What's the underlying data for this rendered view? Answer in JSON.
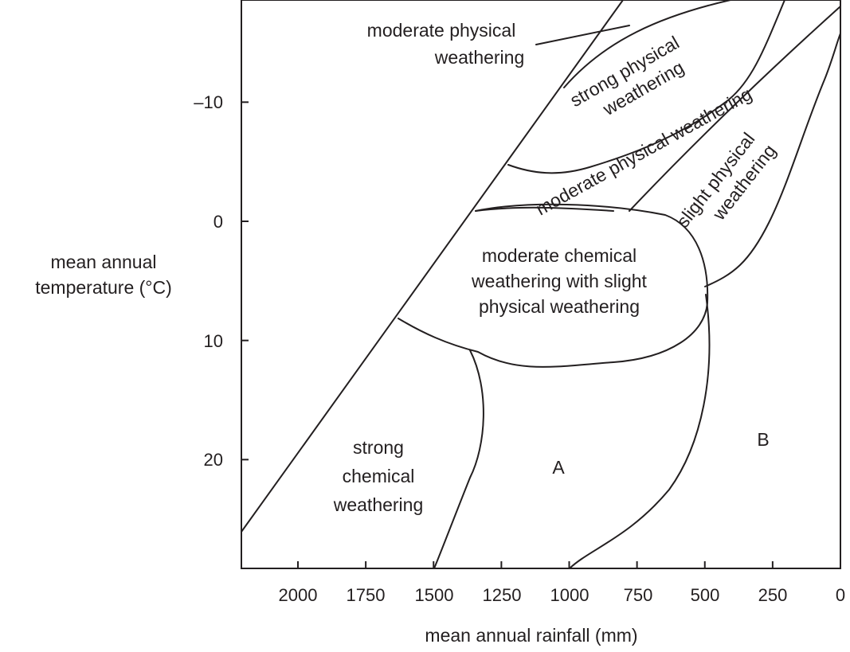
{
  "diagram": {
    "axes": {
      "x_label": "mean annual rainfall (mm)",
      "y_label_lines": [
        "mean annual",
        "temperature (°C)"
      ],
      "x_ticks": [
        {
          "value": 2000,
          "label": "2000"
        },
        {
          "value": 1750,
          "label": "1750"
        },
        {
          "value": 1500,
          "label": "1500"
        },
        {
          "value": 1250,
          "label": "1250"
        },
        {
          "value": 1000,
          "label": "1000"
        },
        {
          "value": 750,
          "label": "750"
        },
        {
          "value": 500,
          "label": "500"
        },
        {
          "value": 250,
          "label": "250"
        },
        {
          "value": 0,
          "label": "0"
        }
      ],
      "y_ticks": [
        {
          "value": -10,
          "label": "–10"
        },
        {
          "value": 0,
          "label": "0"
        },
        {
          "value": 10,
          "label": "10"
        },
        {
          "value": 20,
          "label": "20"
        }
      ],
      "x_range": [
        2120,
        0
      ],
      "y_range": [
        -18,
        29
      ],
      "x_direction": "decreasing left to right",
      "y_direction": "increasing downward"
    },
    "regions": [
      {
        "id": "moderate-physical-top",
        "lines": [
          "moderate physical",
          "weathering"
        ]
      },
      {
        "id": "strong-physical",
        "lines": [
          "strong physical",
          "weathering"
        ]
      },
      {
        "id": "moderate-physical-band",
        "lines": [
          "moderate physical weathering"
        ]
      },
      {
        "id": "slight-physical",
        "lines": [
          "slight physical",
          "weathering"
        ]
      },
      {
        "id": "moderate-chemical",
        "lines": [
          "moderate chemical",
          "weathering with slight",
          "physical weathering"
        ]
      },
      {
        "id": "strong-chemical",
        "lines": [
          "strong",
          "chemical",
          "weathering"
        ]
      },
      {
        "id": "region-a",
        "lines": [
          "A"
        ]
      },
      {
        "id": "region-b",
        "lines": [
          "B"
        ]
      }
    ]
  }
}
